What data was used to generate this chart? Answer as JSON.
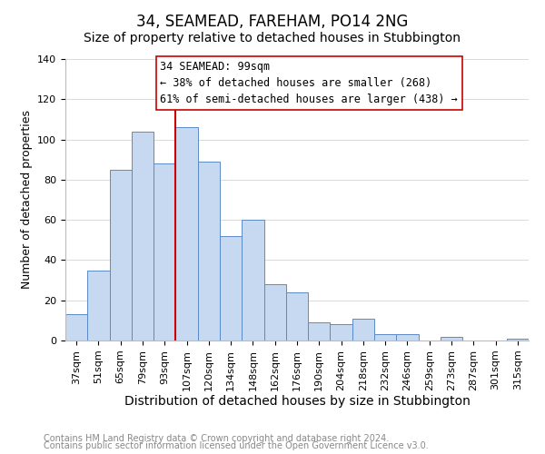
{
  "title": "34, SEAMEAD, FAREHAM, PO14 2NG",
  "subtitle": "Size of property relative to detached houses in Stubbington",
  "xlabel": "Distribution of detached houses by size in Stubbington",
  "ylabel": "Number of detached properties",
  "bar_labels": [
    "37sqm",
    "51sqm",
    "65sqm",
    "79sqm",
    "93sqm",
    "107sqm",
    "120sqm",
    "134sqm",
    "148sqm",
    "162sqm",
    "176sqm",
    "190sqm",
    "204sqm",
    "218sqm",
    "232sqm",
    "246sqm",
    "259sqm",
    "273sqm",
    "287sqm",
    "301sqm",
    "315sqm"
  ],
  "bar_values": [
    13,
    35,
    85,
    104,
    88,
    106,
    89,
    52,
    60,
    28,
    24,
    9,
    8,
    11,
    3,
    3,
    0,
    2,
    0,
    0,
    1
  ],
  "bar_color": "#c6d9f1",
  "bar_edge_color": "#5a8ac6",
  "vline_x": 4.5,
  "vline_color": "#cc0000",
  "annotation_title": "34 SEAMEAD: 99sqm",
  "annotation_line1": "← 38% of detached houses are smaller (268)",
  "annotation_line2": "61% of semi-detached houses are larger (438) →",
  "annotation_box_color": "#ffffff",
  "annotation_box_edge": "#cc0000",
  "ylim": [
    0,
    140
  ],
  "yticks": [
    0,
    20,
    40,
    60,
    80,
    100,
    120,
    140
  ],
  "footer1": "Contains HM Land Registry data © Crown copyright and database right 2024.",
  "footer2": "Contains public sector information licensed under the Open Government Licence v3.0.",
  "background_color": "#ffffff",
  "title_fontsize": 12,
  "subtitle_fontsize": 10,
  "xlabel_fontsize": 10,
  "ylabel_fontsize": 9,
  "tick_fontsize": 8,
  "footer_fontsize": 7,
  "ann_fontsize": 8.5
}
